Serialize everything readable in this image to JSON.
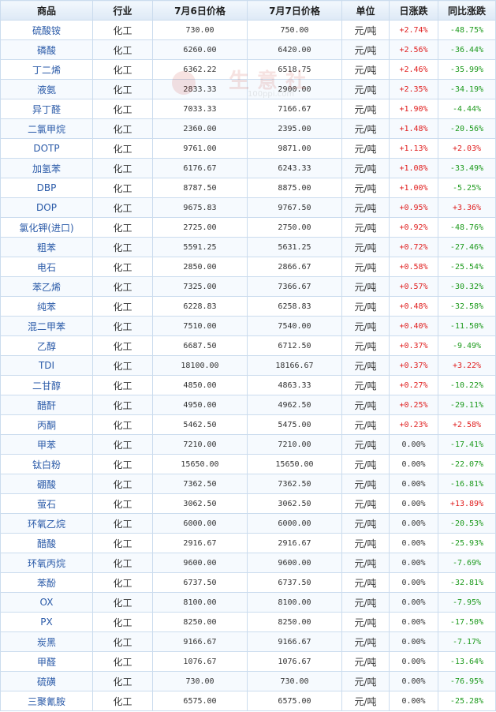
{
  "headers": [
    "商品",
    "行业",
    "7月6日价格",
    "7月7日价格",
    "单位",
    "日涨跌",
    "同比涨跌"
  ],
  "watermark": {
    "brand": "生意社",
    "url": "100ppi.com"
  },
  "colors": {
    "up": "#e02020",
    "down": "#1d9a1d",
    "name": "#2a5aa8",
    "border": "#cbdcee",
    "header_bg": "#dde9f6"
  },
  "rows": [
    {
      "name": "硫酸铵",
      "industry": "化工",
      "p1": "730.00",
      "p2": "750.00",
      "unit": "元/吨",
      "daily": "+2.74%",
      "yoy": "-48.75%"
    },
    {
      "name": "磷酸",
      "industry": "化工",
      "p1": "6260.00",
      "p2": "6420.00",
      "unit": "元/吨",
      "daily": "+2.56%",
      "yoy": "-36.44%"
    },
    {
      "name": "丁二烯",
      "industry": "化工",
      "p1": "6362.22",
      "p2": "6518.75",
      "unit": "元/吨",
      "daily": "+2.46%",
      "yoy": "-35.99%"
    },
    {
      "name": "液氨",
      "industry": "化工",
      "p1": "2833.33",
      "p2": "2900.00",
      "unit": "元/吨",
      "daily": "+2.35%",
      "yoy": "-34.19%"
    },
    {
      "name": "异丁醛",
      "industry": "化工",
      "p1": "7033.33",
      "p2": "7166.67",
      "unit": "元/吨",
      "daily": "+1.90%",
      "yoy": "-4.44%"
    },
    {
      "name": "二氯甲烷",
      "industry": "化工",
      "p1": "2360.00",
      "p2": "2395.00",
      "unit": "元/吨",
      "daily": "+1.48%",
      "yoy": "-20.56%"
    },
    {
      "name": "DOTP",
      "industry": "化工",
      "p1": "9761.00",
      "p2": "9871.00",
      "unit": "元/吨",
      "daily": "+1.13%",
      "yoy": "+2.03%"
    },
    {
      "name": "加氢苯",
      "industry": "化工",
      "p1": "6176.67",
      "p2": "6243.33",
      "unit": "元/吨",
      "daily": "+1.08%",
      "yoy": "-33.49%"
    },
    {
      "name": "DBP",
      "industry": "化工",
      "p1": "8787.50",
      "p2": "8875.00",
      "unit": "元/吨",
      "daily": "+1.00%",
      "yoy": "-5.25%"
    },
    {
      "name": "DOP",
      "industry": "化工",
      "p1": "9675.83",
      "p2": "9767.50",
      "unit": "元/吨",
      "daily": "+0.95%",
      "yoy": "+3.36%"
    },
    {
      "name": "氯化钾(进口)",
      "industry": "化工",
      "p1": "2725.00",
      "p2": "2750.00",
      "unit": "元/吨",
      "daily": "+0.92%",
      "yoy": "-48.76%"
    },
    {
      "name": "粗苯",
      "industry": "化工",
      "p1": "5591.25",
      "p2": "5631.25",
      "unit": "元/吨",
      "daily": "+0.72%",
      "yoy": "-27.46%"
    },
    {
      "name": "电石",
      "industry": "化工",
      "p1": "2850.00",
      "p2": "2866.67",
      "unit": "元/吨",
      "daily": "+0.58%",
      "yoy": "-25.54%"
    },
    {
      "name": "苯乙烯",
      "industry": "化工",
      "p1": "7325.00",
      "p2": "7366.67",
      "unit": "元/吨",
      "daily": "+0.57%",
      "yoy": "-30.32%"
    },
    {
      "name": "纯苯",
      "industry": "化工",
      "p1": "6228.83",
      "p2": "6258.83",
      "unit": "元/吨",
      "daily": "+0.48%",
      "yoy": "-32.58%"
    },
    {
      "name": "混二甲苯",
      "industry": "化工",
      "p1": "7510.00",
      "p2": "7540.00",
      "unit": "元/吨",
      "daily": "+0.40%",
      "yoy": "-11.50%"
    },
    {
      "name": "乙醇",
      "industry": "化工",
      "p1": "6687.50",
      "p2": "6712.50",
      "unit": "元/吨",
      "daily": "+0.37%",
      "yoy": "-9.49%"
    },
    {
      "name": "TDI",
      "industry": "化工",
      "p1": "18100.00",
      "p2": "18166.67",
      "unit": "元/吨",
      "daily": "+0.37%",
      "yoy": "+3.22%"
    },
    {
      "name": "二甘醇",
      "industry": "化工",
      "p1": "4850.00",
      "p2": "4863.33",
      "unit": "元/吨",
      "daily": "+0.27%",
      "yoy": "-10.22%"
    },
    {
      "name": "醋酐",
      "industry": "化工",
      "p1": "4950.00",
      "p2": "4962.50",
      "unit": "元/吨",
      "daily": "+0.25%",
      "yoy": "-29.11%"
    },
    {
      "name": "丙酮",
      "industry": "化工",
      "p1": "5462.50",
      "p2": "5475.00",
      "unit": "元/吨",
      "daily": "+0.23%",
      "yoy": "+2.58%"
    },
    {
      "name": "甲苯",
      "industry": "化工",
      "p1": "7210.00",
      "p2": "7210.00",
      "unit": "元/吨",
      "daily": "0.00%",
      "yoy": "-17.41%"
    },
    {
      "name": "钛白粉",
      "industry": "化工",
      "p1": "15650.00",
      "p2": "15650.00",
      "unit": "元/吨",
      "daily": "0.00%",
      "yoy": "-22.07%"
    },
    {
      "name": "硼酸",
      "industry": "化工",
      "p1": "7362.50",
      "p2": "7362.50",
      "unit": "元/吨",
      "daily": "0.00%",
      "yoy": "-16.81%"
    },
    {
      "name": "萤石",
      "industry": "化工",
      "p1": "3062.50",
      "p2": "3062.50",
      "unit": "元/吨",
      "daily": "0.00%",
      "yoy": "+13.89%"
    },
    {
      "name": "环氧乙烷",
      "industry": "化工",
      "p1": "6000.00",
      "p2": "6000.00",
      "unit": "元/吨",
      "daily": "0.00%",
      "yoy": "-20.53%"
    },
    {
      "name": "醋酸",
      "industry": "化工",
      "p1": "2916.67",
      "p2": "2916.67",
      "unit": "元/吨",
      "daily": "0.00%",
      "yoy": "-25.93%"
    },
    {
      "name": "环氧丙烷",
      "industry": "化工",
      "p1": "9600.00",
      "p2": "9600.00",
      "unit": "元/吨",
      "daily": "0.00%",
      "yoy": "-7.69%"
    },
    {
      "name": "苯酚",
      "industry": "化工",
      "p1": "6737.50",
      "p2": "6737.50",
      "unit": "元/吨",
      "daily": "0.00%",
      "yoy": "-32.81%"
    },
    {
      "name": "OX",
      "industry": "化工",
      "p1": "8100.00",
      "p2": "8100.00",
      "unit": "元/吨",
      "daily": "0.00%",
      "yoy": "-7.95%"
    },
    {
      "name": "PX",
      "industry": "化工",
      "p1": "8250.00",
      "p2": "8250.00",
      "unit": "元/吨",
      "daily": "0.00%",
      "yoy": "-17.50%"
    },
    {
      "name": "炭黑",
      "industry": "化工",
      "p1": "9166.67",
      "p2": "9166.67",
      "unit": "元/吨",
      "daily": "0.00%",
      "yoy": "-7.17%"
    },
    {
      "name": "甲醛",
      "industry": "化工",
      "p1": "1076.67",
      "p2": "1076.67",
      "unit": "元/吨",
      "daily": "0.00%",
      "yoy": "-13.64%"
    },
    {
      "name": "硫磺",
      "industry": "化工",
      "p1": "730.00",
      "p2": "730.00",
      "unit": "元/吨",
      "daily": "0.00%",
      "yoy": "-76.95%"
    },
    {
      "name": "三聚氰胺",
      "industry": "化工",
      "p1": "6575.00",
      "p2": "6575.00",
      "unit": "元/吨",
      "daily": "0.00%",
      "yoy": "-25.28%"
    }
  ]
}
